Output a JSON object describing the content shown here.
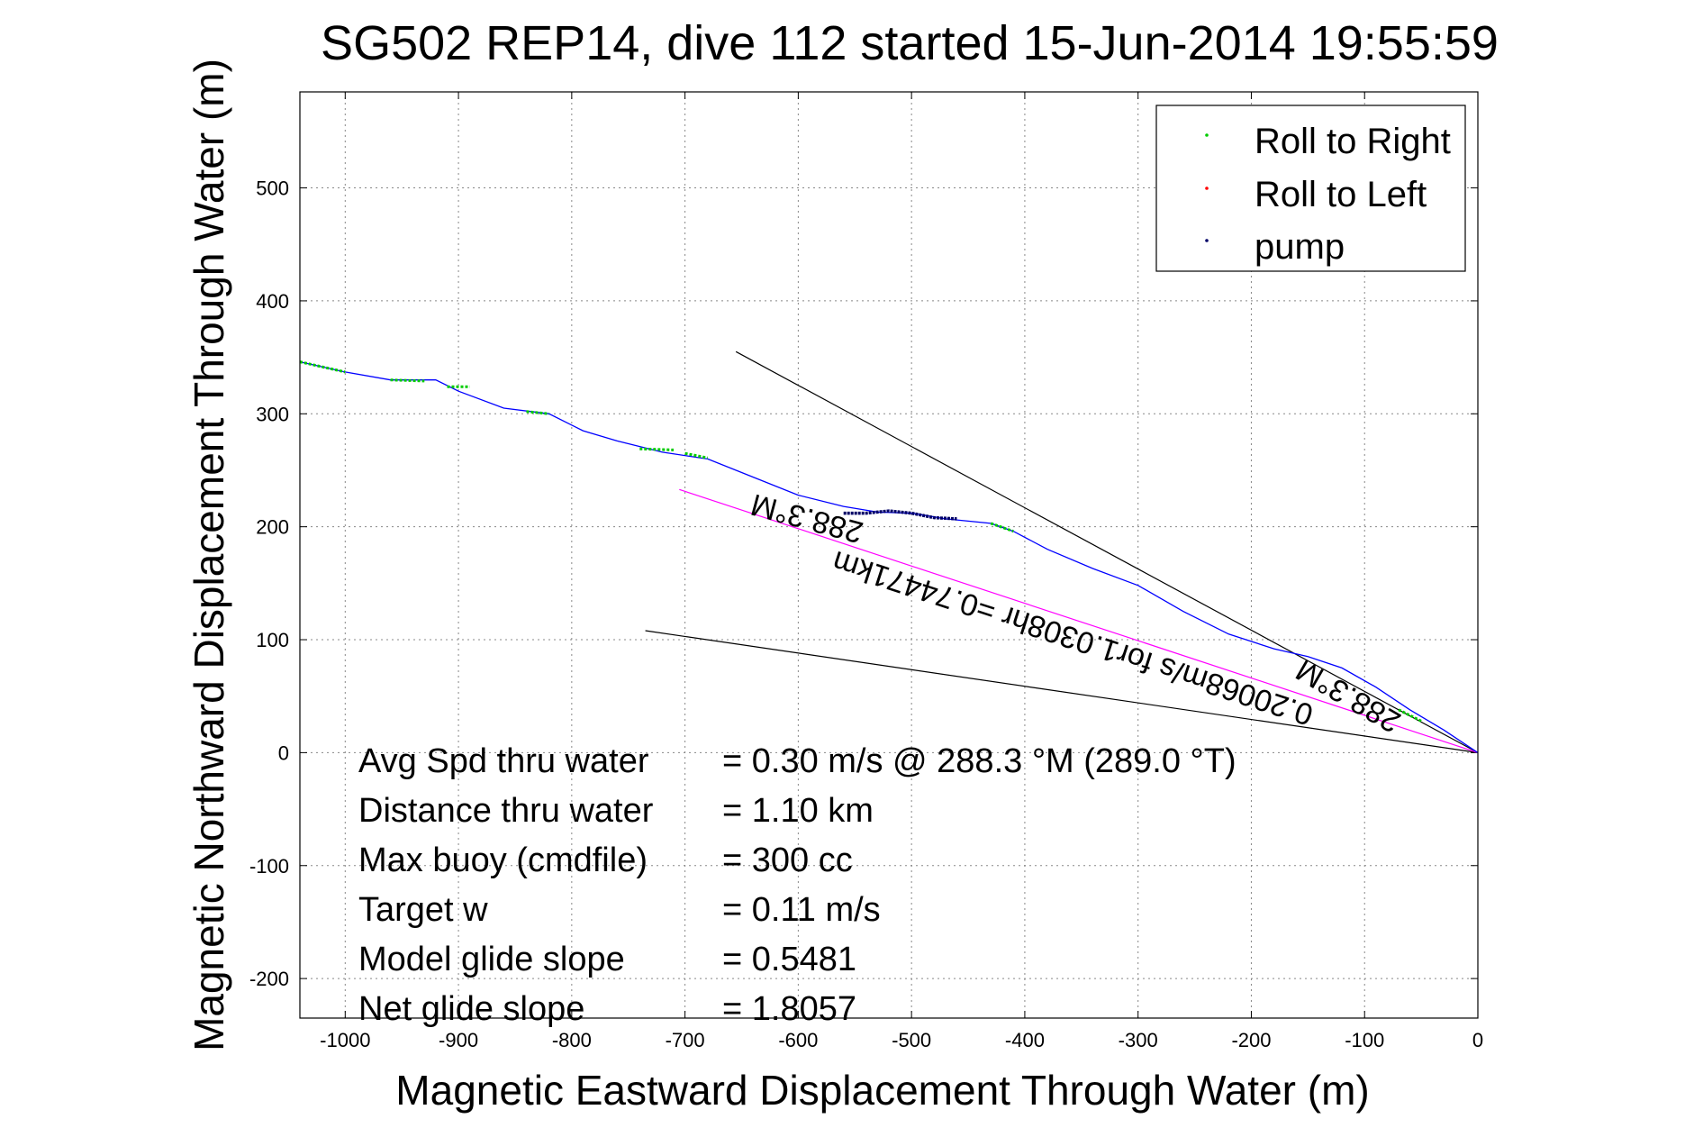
{
  "chart_data": {
    "type": "line",
    "title": "SG502 REP14, dive 112 started 15-Jun-2014 19:55:59",
    "xlabel": "Magnetic Eastward Displacement Through Water (m)",
    "ylabel": "Magnetic Northward Displacement Through Water (m)",
    "xlim": [
      -1040,
      0
    ],
    "ylim": [
      -235,
      585
    ],
    "grid": true,
    "x_ticks": [
      -1000,
      -900,
      -800,
      -700,
      -600,
      -500,
      -400,
      -300,
      -200,
      -100,
      0
    ],
    "y_ticks": [
      -200,
      -100,
      0,
      100,
      200,
      300,
      400,
      500
    ],
    "x_tick_labels": [
      "-1000",
      "-900",
      "-800",
      "-700",
      "-600",
      "-500",
      "-400",
      "-300",
      "-200",
      "-100",
      "0"
    ],
    "y_tick_labels": [
      "-200",
      "-100",
      "0",
      "100",
      "200",
      "300",
      "400",
      "500"
    ],
    "legend": {
      "placement": "top-right",
      "entries": [
        {
          "label": "Roll to Right",
          "color": "#00cc00"
        },
        {
          "label": "Roll to Left",
          "color": "#ff0000"
        },
        {
          "label": "pump",
          "color": "#000066"
        }
      ]
    },
    "track": {
      "color": "#0000ff",
      "points": [
        [
          0,
          0
        ],
        [
          -30,
          20
        ],
        [
          -60,
          38
        ],
        [
          -90,
          58
        ],
        [
          -120,
          75
        ],
        [
          -150,
          85
        ],
        [
          -180,
          92
        ],
        [
          -220,
          105
        ],
        [
          -260,
          125
        ],
        [
          -300,
          148
        ],
        [
          -340,
          163
        ],
        [
          -380,
          180
        ],
        [
          -410,
          196
        ],
        [
          -430,
          203
        ],
        [
          -470,
          207
        ],
        [
          -500,
          212
        ],
        [
          -530,
          213
        ],
        [
          -560,
          218
        ],
        [
          -600,
          228
        ],
        [
          -640,
          244
        ],
        [
          -680,
          260
        ],
        [
          -720,
          266
        ],
        [
          -760,
          276
        ],
        [
          -790,
          285
        ],
        [
          -820,
          300
        ],
        [
          -860,
          305
        ],
        [
          -900,
          320
        ],
        [
          -920,
          330
        ],
        [
          -960,
          330
        ],
        [
          -1000,
          337
        ],
        [
          -1040,
          346
        ]
      ]
    },
    "roll_right_segments": [
      [
        [
          -1040,
          346
        ],
        [
          -1000,
          337
        ]
      ],
      [
        [
          -960,
          330
        ],
        [
          -930,
          329
        ]
      ],
      [
        [
          -910,
          324
        ],
        [
          -890,
          324
        ]
      ],
      [
        [
          -840,
          302
        ],
        [
          -820,
          300
        ]
      ],
      [
        [
          -740,
          269
        ],
        [
          -710,
          268
        ]
      ],
      [
        [
          -700,
          265
        ],
        [
          -680,
          261
        ]
      ],
      [
        [
          -430,
          203
        ],
        [
          -410,
          196
        ]
      ],
      [
        [
          -70,
          38
        ],
        [
          -50,
          28
        ]
      ]
    ],
    "pump_segment": [
      [
        -560,
        212
      ],
      [
        -540,
        212
      ],
      [
        -520,
        214
      ],
      [
        -500,
        212
      ],
      [
        -480,
        208
      ],
      [
        -460,
        207
      ]
    ],
    "reference_lines": [
      {
        "color": "#000000",
        "points": [
          [
            0,
            0
          ],
          [
            -655,
            355
          ]
        ]
      },
      {
        "color": "#000000",
        "points": [
          [
            0,
            0
          ],
          [
            -735,
            108
          ]
        ]
      },
      {
        "color": "#ff00ff",
        "points": [
          [
            0,
            0
          ],
          [
            -705,
            233
          ]
        ]
      }
    ],
    "annotations": [
      {
        "text": "288.3°M",
        "x": -590,
        "y": 216,
        "rotation": 195
      },
      {
        "text": "0.20068m/s for1.0308hr =0.74471km",
        "x": -355,
        "y": 110,
        "rotation": 198
      },
      {
        "text": "288.3°M",
        "x": -110,
        "y": 58,
        "rotation": 210
      }
    ],
    "stats": [
      {
        "label": "Avg Spd thru water",
        "value": "=  0.30 m/s @ 288.3 °M (289.0 °T)"
      },
      {
        "label": "Distance thru water",
        "value": "=  1.10 km"
      },
      {
        "label": "Max buoy (cmdfile)",
        "value": "= 300 cc"
      },
      {
        "label": "Target w",
        "value": "= 0.11 m/s"
      },
      {
        "label": "Model glide slope",
        "value": "= 0.5481"
      },
      {
        "label": "Net glide slope",
        "value": "= 1.8057"
      }
    ]
  }
}
